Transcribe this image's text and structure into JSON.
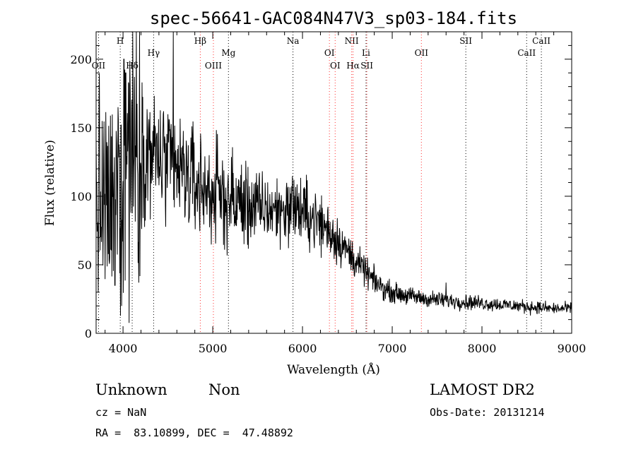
{
  "chart_data": {
    "type": "line",
    "title": "spec-56641-GAC084N47V3_sp03-184.fits",
    "xlabel": "Wavelength (Å)",
    "ylabel": "Flux (relative)",
    "xlim": [
      3700,
      9000
    ],
    "ylim": [
      0,
      220
    ],
    "xticks": [
      4000,
      5000,
      6000,
      7000,
      8000,
      9000
    ],
    "yticks": [
      0,
      50,
      100,
      150,
      200
    ],
    "grid": false,
    "spectrum_anchors": {
      "x": [
        3700,
        3750,
        3800,
        3850,
        3900,
        3950,
        4000,
        4050,
        4100,
        4150,
        4200,
        4300,
        4400,
        4500,
        4600,
        4700,
        4800,
        4900,
        5000,
        5100,
        5200,
        5300,
        5400,
        5500,
        5600,
        5700,
        5800,
        5900,
        6000,
        6100,
        6200,
        6300,
        6400,
        6500,
        6600,
        6700,
        6800,
        6900,
        7000,
        7200,
        7400,
        7600,
        7800,
        8000,
        8200,
        8400,
        8600,
        8800,
        9000
      ],
      "y": [
        100,
        95,
        90,
        88,
        95,
        110,
        125,
        140,
        145,
        140,
        135,
        132,
        128,
        122,
        118,
        115,
        110,
        106,
        103,
        100,
        97,
        95,
        93,
        92,
        90,
        90,
        91,
        92,
        88,
        85,
        80,
        75,
        68,
        60,
        52,
        45,
        38,
        33,
        30,
        27,
        25,
        24,
        23,
        22,
        21,
        20,
        19,
        18,
        18
      ]
    },
    "spikes": [
      {
        "x": 3910,
        "y": 35
      },
      {
        "x": 3945,
        "y": 165
      },
      {
        "x": 3985,
        "y": 20
      },
      {
        "x": 4010,
        "y": 200
      },
      {
        "x": 4030,
        "y": 190
      },
      {
        "x": 4080,
        "y": 175
      },
      {
        "x": 4560,
        "y": 220
      },
      {
        "x": 5905,
        "y": 112
      },
      {
        "x": 7600,
        "y": 37
      }
    ],
    "lines": [
      {
        "label": "H",
        "x": 3969,
        "row": 0,
        "color": "#000000"
      },
      {
        "label": "OII",
        "x": 3727,
        "row": 2,
        "color": "#000000"
      },
      {
        "label": "Hδ",
        "x": 4102,
        "row": 2,
        "color": "#000000"
      },
      {
        "label": "Hγ",
        "x": 4341,
        "row": 1,
        "color": "#000000"
      },
      {
        "label": "Hβ",
        "x": 4861,
        "row": 0,
        "color": "#ff3030"
      },
      {
        "label": "OIII",
        "x": 5007,
        "row": 2,
        "color": "#ff3030"
      },
      {
        "label": "Mg",
        "x": 5175,
        "row": 1,
        "color": "#000000"
      },
      {
        "label": "Na",
        "x": 5894,
        "row": 0,
        "color": "#000000"
      },
      {
        "label": "OI",
        "x": 6300,
        "row": 1,
        "color": "#ff3030"
      },
      {
        "label": "OI",
        "x": 6364,
        "row": 2,
        "color": "#ff3030"
      },
      {
        "label": "NII",
        "x": 6548,
        "row": 0,
        "color": "#ff3030"
      },
      {
        "label": "Hα",
        "x": 6563,
        "row": 2,
        "color": "#ff3030"
      },
      {
        "label": "Li",
        "x": 6708,
        "row": 1,
        "color": "#000000"
      },
      {
        "label": "SII",
        "x": 6717,
        "row": 2,
        "color": "#ff3030"
      },
      {
        "label": "OII",
        "x": 7325,
        "row": 1,
        "color": "#ff3030"
      },
      {
        "label": "SII",
        "x": 7820,
        "row": 0,
        "color": "#000000"
      },
      {
        "label": "CaII",
        "x": 8498,
        "row": 1,
        "color": "#000000"
      },
      {
        "label": "CaII",
        "x": 8662,
        "row": 0,
        "color": "#000000"
      }
    ]
  },
  "info": {
    "class_label": "Unknown",
    "subclass_label": "Non",
    "survey": "LAMOST DR2",
    "cz": "cz = NaN",
    "obs_date": "Obs-Date: 20131214",
    "coords": "RA =  83.10899, DEC =  47.48892"
  }
}
